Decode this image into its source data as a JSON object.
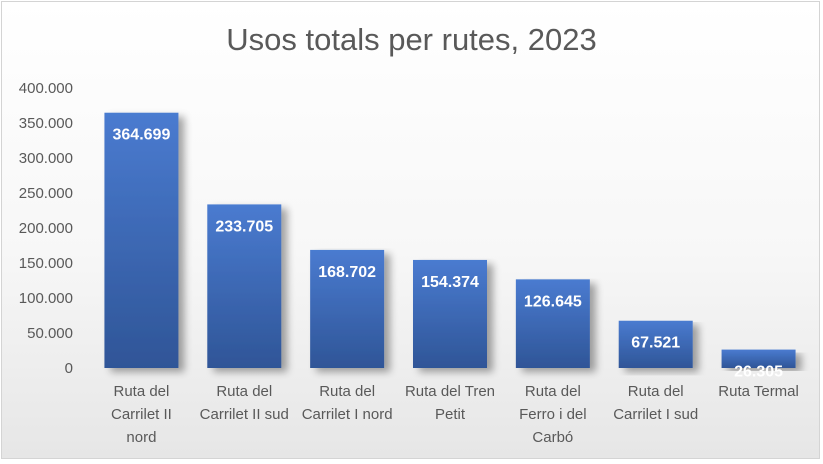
{
  "chart_data": {
    "type": "bar",
    "title": "Usos totals per rutes, 2023",
    "xlabel": "",
    "ylabel": "",
    "categories": [
      "Ruta del Carrilet II nord",
      "Ruta del Carrilet II sud",
      "Ruta del Carrilet I nord",
      "Ruta del Tren Petit",
      "Ruta del Ferro i del Carbó",
      "Ruta del Carrilet I sud",
      "Ruta Termal"
    ],
    "category_lines": [
      [
        "Ruta del",
        "Carrilet II",
        "nord"
      ],
      [
        "Ruta del",
        "Carrilet II sud"
      ],
      [
        "Ruta del",
        "Carrilet I nord"
      ],
      [
        "Ruta del Tren",
        "Petit"
      ],
      [
        "Ruta del",
        "Ferro i del",
        "Carbó"
      ],
      [
        "Ruta del",
        "Carrilet I sud"
      ],
      [
        "Ruta Termal"
      ]
    ],
    "values": [
      364699,
      233705,
      168702,
      154374,
      126645,
      67521,
      26305
    ],
    "data_labels": [
      "364.699",
      "233.705",
      "168.702",
      "154.374",
      "126.645",
      "67.521",
      "26.305"
    ],
    "ylim": [
      0,
      400000
    ],
    "yticks": [
      0,
      50000,
      100000,
      150000,
      200000,
      250000,
      300000,
      350000,
      400000
    ],
    "ytick_labels": [
      "0",
      "50.000",
      "100.000",
      "150.000",
      "200.000",
      "250.000",
      "300.000",
      "350.000",
      "400.000"
    ],
    "grid": false,
    "legend": "none",
    "colors": {
      "bar_top": "#4a7bd0",
      "bar_bottom": "#2f5597"
    }
  }
}
